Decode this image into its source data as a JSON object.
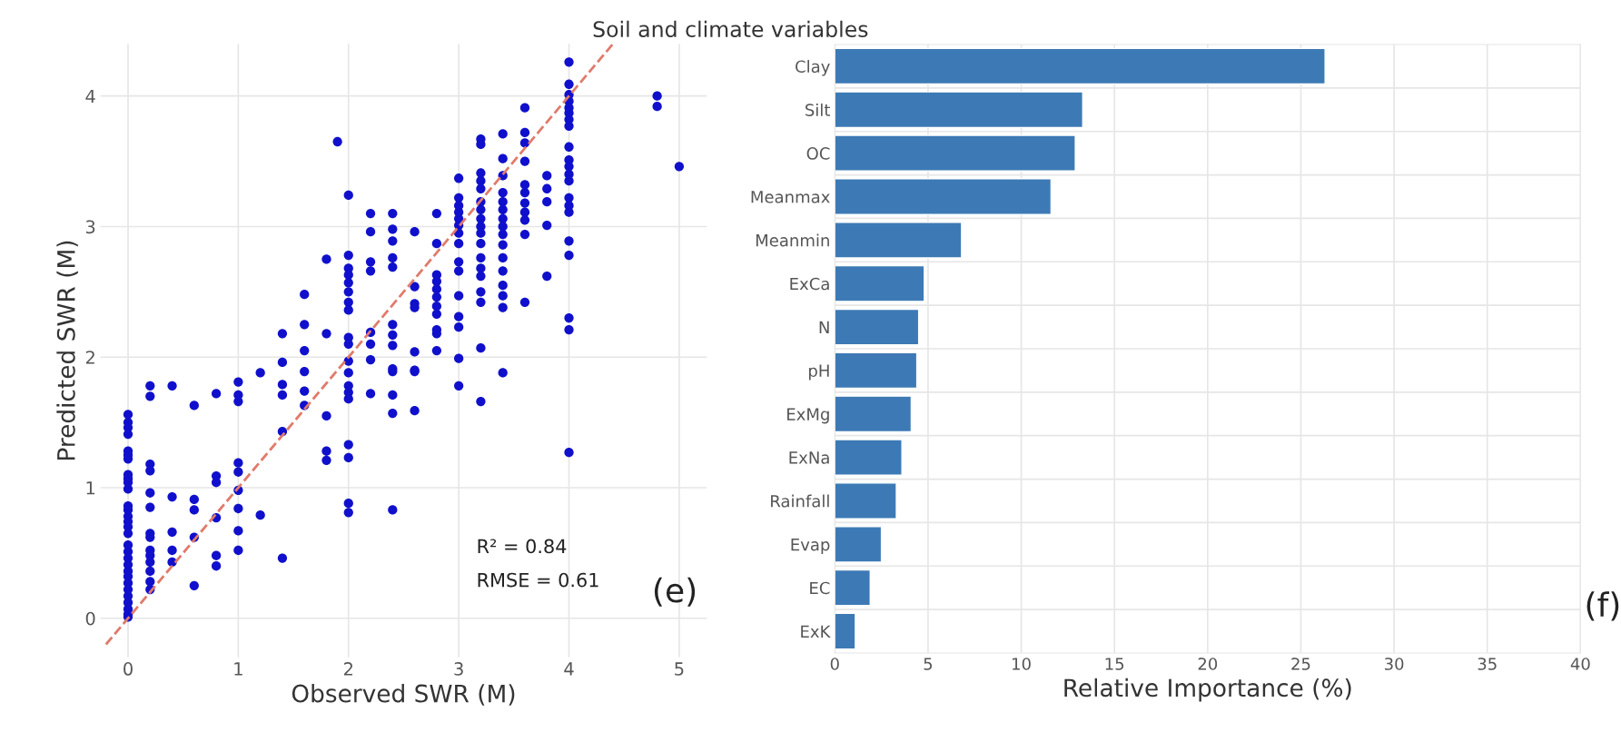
{
  "chart_data": [
    {
      "type": "scatter",
      "xlabel": "Observed SWR (M)",
      "ylabel": "Predicted SWR (M)",
      "xlim": [
        -0.25,
        5.25
      ],
      "ylim": [
        -0.3,
        4.4
      ],
      "xticks": [
        0,
        1,
        2,
        3,
        4,
        5
      ],
      "yticks": [
        0,
        1,
        2,
        3,
        4
      ],
      "grid": true,
      "series": [
        {
          "color": "#1010cc",
          "marker": "circle",
          "x": [
            0,
            0,
            0,
            0,
            0,
            0,
            0,
            0,
            0,
            0,
            0,
            0,
            0,
            0,
            0,
            0,
            0,
            0,
            0,
            0,
            0,
            0,
            0,
            0,
            0,
            0,
            0,
            0,
            0,
            0,
            0.2,
            0.2,
            0.2,
            0.2,
            0.2,
            0.2,
            0.2,
            0.2,
            0.2,
            0.2,
            0.2,
            0.2,
            0.2,
            0.2,
            0.4,
            0.4,
            0.4,
            0.4,
            0.4,
            0.6,
            0.6,
            0.6,
            0.6,
            0.6,
            0.8,
            0.8,
            0.8,
            0.8,
            0.8,
            0.8,
            1,
            1,
            1,
            1,
            1,
            1,
            1,
            1,
            1,
            1.2,
            1.2,
            1.4,
            1.4,
            1.4,
            1.4,
            1.4,
            1.4,
            1.6,
            1.6,
            1.6,
            1.6,
            1.6,
            1.6,
            1.8,
            1.8,
            1.8,
            1.8,
            1.8,
            1.9,
            2,
            2,
            2,
            2,
            2,
            2,
            2,
            2,
            2,
            2,
            2,
            2,
            2,
            2,
            2,
            2,
            2,
            2,
            2,
            2.2,
            2.2,
            2.2,
            2.2,
            2.2,
            2.2,
            2.2,
            2.2,
            2.4,
            2.4,
            2.4,
            2.4,
            2.4,
            2.4,
            2.4,
            2.4,
            2.4,
            2.4,
            2.4,
            2.4,
            2.4,
            2.6,
            2.6,
            2.6,
            2.6,
            2.6,
            2.6,
            2.6,
            2.6,
            2.8,
            2.8,
            2.8,
            2.8,
            2.8,
            2.8,
            2.8,
            2.8,
            2.8,
            2.8,
            2.8,
            3,
            3,
            3,
            3,
            3,
            3,
            3,
            3,
            3,
            3,
            3,
            3,
            3,
            3,
            3,
            3.2,
            3.2,
            3.2,
            3.2,
            3.2,
            3.2,
            3.2,
            3.2,
            3.2,
            3.2,
            3.2,
            3.2,
            3.2,
            3.2,
            3.2,
            3.2,
            3.2,
            3.2,
            3.4,
            3.4,
            3.4,
            3.4,
            3.4,
            3.4,
            3.4,
            3.4,
            3.4,
            3.4,
            3.4,
            3.4,
            3.4,
            3.4,
            3.4,
            3.4,
            3.6,
            3.6,
            3.6,
            3.6,
            3.6,
            3.6,
            3.6,
            3.6,
            3.6,
            3.6,
            3.6,
            3.8,
            3.8,
            3.8,
            3.8,
            3.8,
            4,
            4,
            4,
            4,
            4,
            4,
            4,
            4,
            4,
            4,
            4,
            4,
            4,
            4,
            4,
            4,
            4,
            4,
            4,
            4,
            4,
            4.8,
            4.8,
            5
          ],
          "values": [
            1.56,
            1.5,
            1.46,
            1.41,
            1.28,
            1.25,
            1.22,
            1.1,
            1.07,
            1.04,
            0.99,
            0.86,
            0.83,
            0.78,
            0.74,
            0.7,
            0.65,
            0.56,
            0.51,
            0.46,
            0.41,
            0.36,
            0.32,
            0.27,
            0.22,
            0.17,
            0.12,
            0.07,
            0.03,
            0.01,
            1.78,
            1.7,
            1.18,
            1.13,
            0.96,
            0.85,
            0.65,
            0.62,
            0.52,
            0.48,
            0.43,
            0.36,
            0.28,
            0.22,
            1.78,
            0.93,
            0.66,
            0.52,
            0.43,
            1.63,
            0.91,
            0.83,
            0.62,
            0.25,
            1.72,
            1.09,
            1.04,
            0.77,
            0.48,
            0.4,
            1.81,
            1.71,
            1.66,
            1.19,
            1.12,
            0.98,
            0.84,
            0.67,
            0.52,
            1.88,
            0.79,
            2.18,
            1.96,
            1.79,
            1.71,
            1.43,
            0.46,
            2.48,
            2.25,
            2.05,
            1.89,
            1.74,
            1.63,
            2.75,
            2.18,
            1.55,
            1.28,
            1.21,
            3.65,
            3.24,
            2.78,
            2.68,
            2.63,
            2.57,
            2.5,
            2.42,
            2.36,
            2.15,
            2.1,
            1.97,
            1.88,
            1.78,
            1.73,
            1.68,
            1.33,
            1.23,
            0.88,
            0.81,
            3.1,
            2.96,
            2.73,
            2.66,
            2.19,
            2.1,
            1.98,
            1.72,
            3.1,
            2.98,
            2.89,
            2.76,
            2.69,
            2.25,
            2.17,
            2.09,
            1.91,
            1.89,
            1.71,
            1.57,
            0.83,
            2.96,
            2.54,
            2.41,
            2.38,
            2.04,
            1.9,
            1.89,
            1.59,
            3.1,
            2.87,
            2.63,
            2.58,
            2.52,
            2.46,
            2.39,
            2.33,
            2.21,
            2.18,
            2.05,
            3.37,
            3.22,
            3.16,
            3.11,
            3.06,
            3.01,
            2.95,
            2.87,
            2.73,
            2.66,
            2.47,
            2.31,
            2.23,
            1.99,
            1.78,
            3.67,
            3.63,
            3.41,
            3.35,
            3.29,
            3.19,
            3.13,
            3.06,
            3.0,
            2.95,
            2.87,
            2.76,
            2.68,
            2.62,
            2.5,
            2.42,
            2.07,
            1.66,
            3.71,
            3.52,
            3.39,
            3.26,
            3.19,
            3.13,
            3.06,
            3.0,
            2.94,
            2.86,
            2.76,
            2.66,
            2.55,
            2.47,
            2.38,
            1.88,
            3.91,
            3.72,
            3.64,
            3.5,
            3.32,
            3.26,
            3.18,
            3.11,
            3.05,
            2.94,
            2.42,
            3.39,
            3.29,
            3.19,
            3.01,
            2.62,
            4.26,
            4.09,
            4.01,
            3.96,
            3.91,
            3.87,
            3.82,
            3.77,
            3.61,
            3.51,
            3.46,
            3.4,
            3.35,
            3.22,
            3.16,
            3.11,
            2.89,
            2.78,
            2.3,
            2.21,
            1.27,
            4.0,
            3.92,
            3.46
          ]
        },
        {
          "type": "line",
          "color": "#e07b6b",
          "line_style": "dashed",
          "x": [
            -0.2,
            4.4
          ],
          "values": [
            -0.2,
            4.4
          ]
        }
      ],
      "annotations": [
        "R² = 0.84",
        "RMSE = 0.61",
        "(e)"
      ]
    },
    {
      "type": "bar",
      "orientation": "horizontal",
      "title": "Soil and climate variables",
      "xlabel": "Relative Importance (%)",
      "categories": [
        "Clay",
        "Silt",
        "OC",
        "Meanmax",
        "Meanmin",
        "ExCa",
        "N",
        "pH",
        "ExMg",
        "ExNa",
        "Rainfall",
        "Evap",
        "EC",
        "ExK"
      ],
      "values": [
        26.3,
        13.3,
        12.9,
        11.6,
        6.8,
        4.8,
        4.5,
        4.4,
        4.1,
        3.6,
        3.3,
        2.5,
        1.9,
        1.1
      ],
      "color": "#3d7ab5",
      "xlim": [
        0,
        40
      ],
      "xticks": [
        0,
        5,
        10,
        15,
        20,
        25,
        30,
        35,
        40
      ],
      "grid": true,
      "annotations": [
        "(f)"
      ]
    }
  ]
}
